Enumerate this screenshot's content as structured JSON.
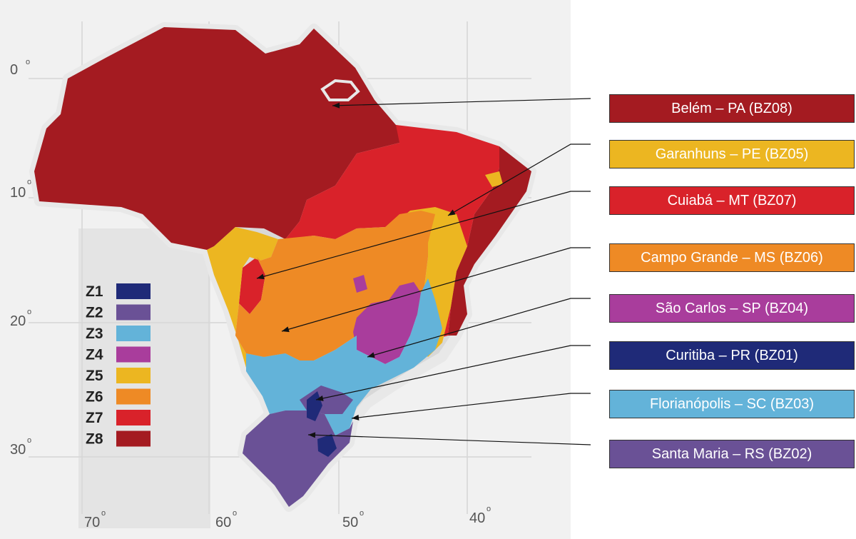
{
  "colors": {
    "Z1": "#1f2a78",
    "Z2": "#6a5196",
    "Z3": "#63b3d9",
    "Z4": "#a93d9c",
    "Z5": "#ecb621",
    "Z6": "#ee8a25",
    "Z7": "#d9222a",
    "Z8": "#a41b21"
  },
  "legend": [
    {
      "label": "Z1",
      "zone": "Z1"
    },
    {
      "label": "Z2",
      "zone": "Z2"
    },
    {
      "label": "Z3",
      "zone": "Z3"
    },
    {
      "label": "Z4",
      "zone": "Z4"
    },
    {
      "label": "Z5",
      "zone": "Z5"
    },
    {
      "label": "Z6",
      "zone": "Z6"
    },
    {
      "label": "Z7",
      "zone": "Z7"
    },
    {
      "label": "Z8",
      "zone": "Z8"
    }
  ],
  "latitude_labels": [
    "0",
    "10",
    "20",
    "30"
  ],
  "longitude_labels": [
    "70",
    "60",
    "50",
    "40"
  ],
  "cities": [
    {
      "label": "Belém – PA (BZ08)",
      "zone": "Z8"
    },
    {
      "label": "Garanhuns – PE (BZ05)",
      "zone": "Z5"
    },
    {
      "label": "Cuiabá – MT (BZ07)",
      "zone": "Z7"
    },
    {
      "label": "Campo Grande – MS (BZ06)",
      "zone": "Z6"
    },
    {
      "label": "São Carlos – SP (BZ04)",
      "zone": "Z4"
    },
    {
      "label": "Curitiba – PR (BZ01)",
      "zone": "Z1"
    },
    {
      "label": "Florianópolis – SC (BZ03)",
      "zone": "Z3"
    },
    {
      "label": "Santa Maria – RS (BZ02)",
      "zone": "Z2"
    }
  ]
}
